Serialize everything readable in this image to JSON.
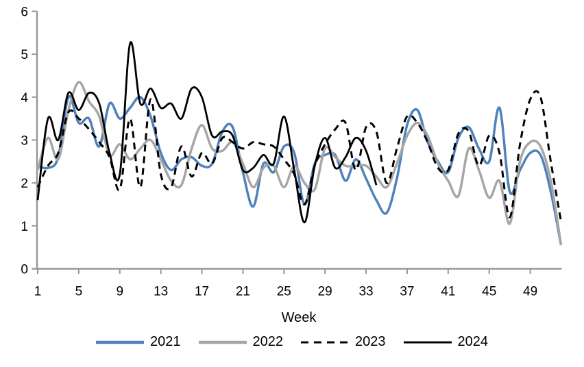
{
  "chart_data": {
    "type": "line",
    "title": "",
    "xlabel": "Week",
    "ylabel": "",
    "x_range": [
      1,
      52
    ],
    "ylim": [
      0,
      6
    ],
    "grid": false,
    "legend_position": "bottom",
    "axis_color": "#969696",
    "tick_label_color": "#000000",
    "y_ticks": [
      0,
      1,
      2,
      3,
      4,
      5,
      6
    ],
    "x_ticks": [
      1,
      5,
      9,
      13,
      17,
      21,
      25,
      29,
      33,
      37,
      41,
      45,
      49
    ],
    "series": [
      {
        "name": "2021",
        "color": "#4F81BD",
        "style": "solid",
        "width": 3.5,
        "x_start": 1,
        "values": [
          2.4,
          2.35,
          2.6,
          4.0,
          3.4,
          3.5,
          2.85,
          3.85,
          3.5,
          3.75,
          4.0,
          3.55,
          2.7,
          2.3,
          2.55,
          2.6,
          2.4,
          2.45,
          3.2,
          3.3,
          2.25,
          1.45,
          2.45,
          2.25,
          2.85,
          2.7,
          1.5,
          2.45,
          2.65,
          2.65,
          2.05,
          2.55,
          2.1,
          1.6,
          1.3,
          2.1,
          3.35,
          3.7,
          2.95,
          2.5,
          2.25,
          3.05,
          3.3,
          2.8,
          2.5,
          3.75,
          1.8,
          2.3,
          2.7,
          2.65,
          1.8,
          0.55
        ]
      },
      {
        "name": "2022",
        "color": "#A6A6A6",
        "style": "solid",
        "width": 3.5,
        "x_start": 1,
        "values": [
          2.3,
          3.05,
          2.55,
          3.7,
          4.35,
          3.9,
          3.55,
          2.65,
          2.9,
          2.55,
          2.8,
          3.0,
          2.55,
          2.05,
          1.95,
          2.8,
          3.35,
          2.8,
          2.75,
          2.95,
          2.45,
          1.9,
          2.35,
          2.4,
          1.9,
          2.4,
          2.0,
          1.85,
          2.8,
          2.6,
          2.4,
          2.4,
          2.4,
          2.15,
          1.9,
          2.45,
          3.1,
          3.4,
          3.1,
          2.45,
          2.05,
          1.7,
          2.8,
          2.3,
          1.65,
          2.05,
          1.05,
          2.5,
          2.95,
          2.85,
          2.05,
          0.55
        ]
      },
      {
        "name": "2023",
        "color": "#000000",
        "style": "dashed",
        "width": 3,
        "x_start": 1,
        "values": [
          1.9,
          2.4,
          2.7,
          3.65,
          3.5,
          3.25,
          2.95,
          2.6,
          1.85,
          3.5,
          1.9,
          3.95,
          2.2,
          1.9,
          2.85,
          2.15,
          2.7,
          2.45,
          3.05,
          2.95,
          2.8,
          2.95,
          2.9,
          2.85,
          2.55,
          2.2,
          1.5,
          2.4,
          2.9,
          3.25,
          3.4,
          2.3,
          3.3,
          3.2,
          2.0,
          2.8,
          3.55,
          3.4,
          2.95,
          2.35,
          2.3,
          3.15,
          3.2,
          2.4,
          3.1,
          2.7,
          1.2,
          2.9,
          3.95,
          4.0,
          2.5,
          1.1
        ]
      },
      {
        "name": "2024",
        "color": "#000000",
        "style": "solid",
        "width": 2.8,
        "x_start": 1,
        "values": [
          1.6,
          3.5,
          3.0,
          4.1,
          3.7,
          4.1,
          3.85,
          2.7,
          2.2,
          5.25,
          3.85,
          4.2,
          3.75,
          3.85,
          3.5,
          4.2,
          4.0,
          3.1,
          3.2,
          3.1,
          2.3,
          2.35,
          2.65,
          2.45,
          3.55,
          2.3,
          1.08,
          2.4,
          3.05,
          2.35,
          2.6,
          3.05,
          2.75,
          1.95
        ]
      }
    ]
  }
}
